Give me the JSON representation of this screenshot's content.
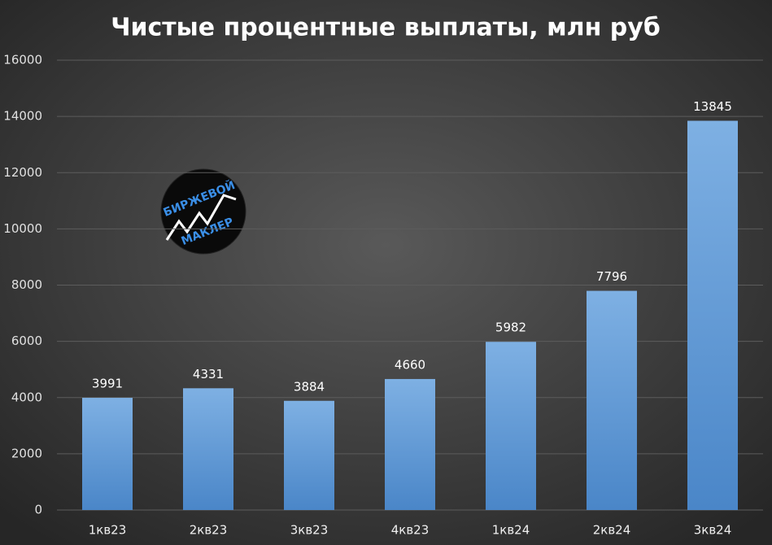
{
  "chart_data": {
    "type": "bar",
    "title": "Чистые процентные выплаты, млн руб",
    "categories": [
      "1кв23",
      "2кв23",
      "3кв23",
      "4кв23",
      "1кв24",
      "2кв24",
      "3кв24"
    ],
    "values": [
      3991,
      4331,
      3884,
      4660,
      5982,
      7796,
      13845
    ],
    "color": "#5b9bd5",
    "ylim": [
      0,
      16000
    ],
    "yticks": [
      0,
      2000,
      4000,
      6000,
      8000,
      10000,
      12000,
      14000,
      16000
    ],
    "grid": true,
    "watermark": [
      "БИРЖЕВОЙ",
      "МАКЛЕР"
    ]
  }
}
